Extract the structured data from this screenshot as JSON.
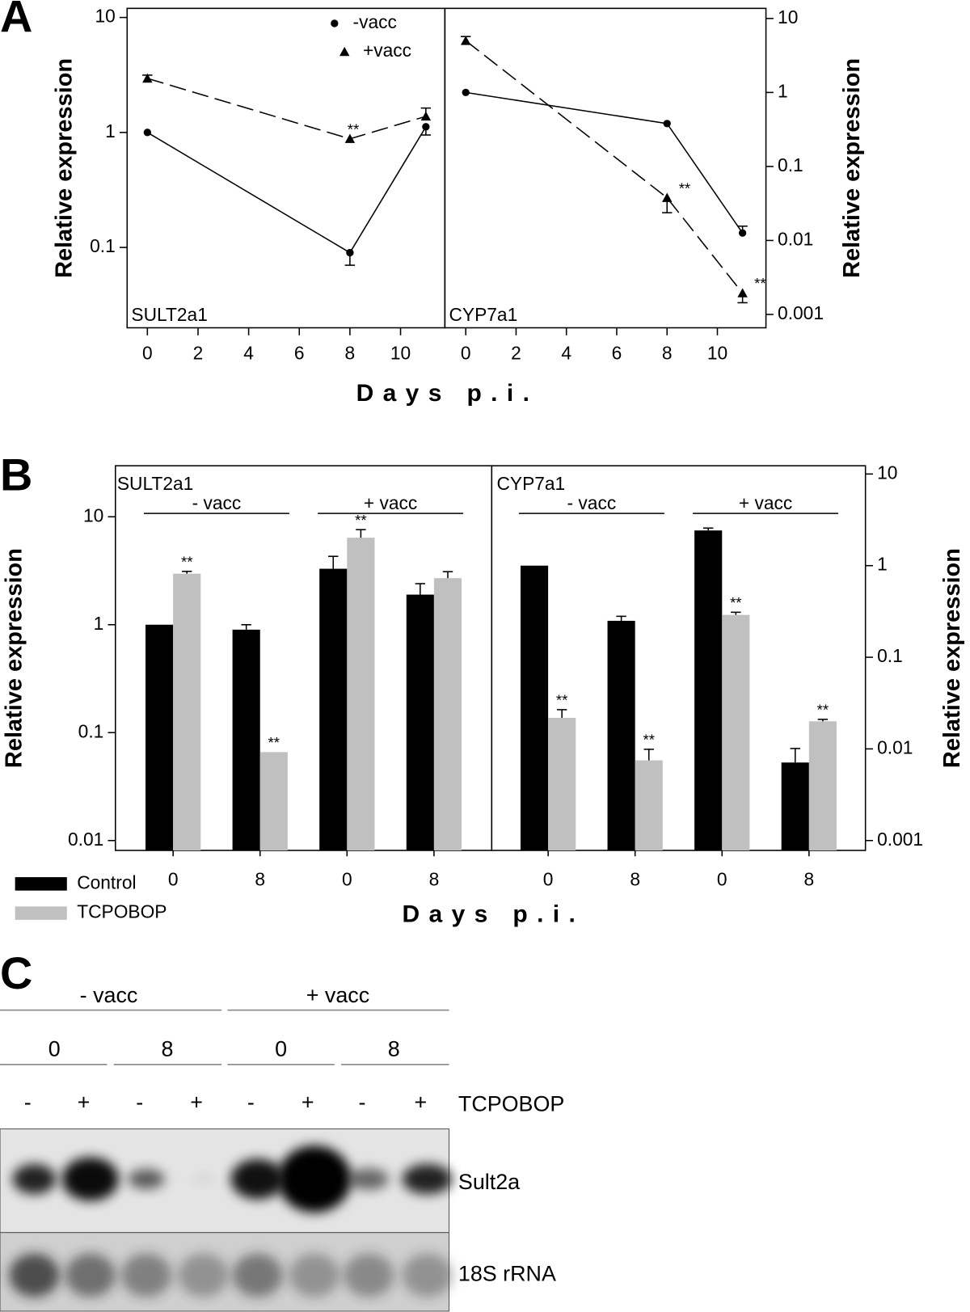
{
  "panel_labels": [
    "A",
    "B",
    "C"
  ],
  "chart_data": [
    {
      "type": "line",
      "title": "SULT2a1",
      "ylabel": "Relative expression",
      "xlabel": "Days p.i.",
      "log_y": true,
      "x": [
        0,
        8,
        11
      ],
      "xlim": [
        -0.8,
        11.75
      ],
      "xticks": [
        0,
        2,
        4,
        6,
        8,
        10
      ],
      "ylim": [
        0.02,
        12
      ],
      "yticks": [
        0.1,
        1,
        10
      ],
      "legend": "upper center",
      "series": [
        {
          "name": "-vacc",
          "color": "#000000",
          "marker": "circle",
          "dashed": false,
          "values": [
            1.0,
            0.09,
            1.12
          ],
          "err_down": [
            null,
            0.02,
            0.17
          ]
        },
        {
          "name": "+vacc",
          "color": "#000000",
          "marker": "triangle",
          "dashed": true,
          "values": [
            2.95,
            0.88,
            1.38
          ],
          "err_up": [
            0.2,
            null,
            0.25
          ],
          "significance": [
            null,
            "**",
            null
          ]
        }
      ]
    },
    {
      "type": "line",
      "title": "CYP7a1",
      "ylabel": "Relative expression",
      "log_y": true,
      "x": [
        0,
        8,
        11
      ],
      "xlim": [
        -0.83,
        11.93
      ],
      "xticks": [
        0,
        2,
        4,
        6,
        8,
        10
      ],
      "ylim": [
        0.00066,
        13.7
      ],
      "yticks": [
        0.001,
        0.01,
        0.1,
        1,
        10
      ],
      "series": [
        {
          "color": "#000000",
          "marker": "circle",
          "dashed": false,
          "values": [
            1.0,
            0.38,
            0.0126
          ],
          "err_up": [
            null,
            null,
            0.003
          ]
        },
        {
          "color": "#000000",
          "marker": "triangle",
          "dashed": true,
          "values": [
            5.0,
            0.0377,
            0.00194
          ],
          "err_up": [
            0.7,
            null,
            null
          ],
          "err_down": [
            null,
            0.014,
            0.0005
          ],
          "significance": [
            null,
            "**",
            "**"
          ]
        }
      ]
    },
    {
      "type": "bar",
      "title": "SULT2a1",
      "ylabel": "Relative expression",
      "xlabel": "Days p.i.",
      "log_y": true,
      "categories": [
        "0",
        "8",
        "0",
        "8"
      ],
      "groups": [
        "- vacc",
        "+ vacc"
      ],
      "ylim": [
        0.0081,
        29.7
      ],
      "yticks": [
        0.01,
        0.1,
        1,
        10
      ],
      "legend": "lower left",
      "series": [
        {
          "name": "Control",
          "color": "#000000",
          "values": [
            1.0,
            0.9,
            3.3,
            1.9
          ],
          "err_up": [
            null,
            0.1,
            1.0,
            0.5
          ]
        },
        {
          "name": "TCPOBOP",
          "color": "#c0c0c0",
          "values": [
            2.97,
            0.066,
            6.4,
            2.7
          ],
          "err_up": [
            0.15,
            null,
            1.2,
            0.4
          ],
          "significance": [
            "**",
            "**",
            "**",
            null
          ]
        }
      ]
    },
    {
      "type": "bar",
      "title": "CYP7a1",
      "ylabel": "Relative expression",
      "log_y": true,
      "categories": [
        "0",
        "8",
        "0",
        "8"
      ],
      "groups": [
        "- vacc",
        "+ vacc"
      ],
      "ylim": [
        0.00078,
        12.3
      ],
      "yticks": [
        0.001,
        0.01,
        0.1,
        1,
        10
      ],
      "series": [
        {
          "color": "#000000",
          "values": [
            1.0,
            0.25,
            2.42,
            0.0071
          ],
          "err_up": [
            null,
            0.03,
            0.15,
            0.003
          ]
        },
        {
          "color": "#c0c0c0",
          "values": [
            0.0218,
            0.0075,
            0.29,
            0.02
          ],
          "err_up": [
            0.005,
            0.0024,
            0.02,
            0.001
          ],
          "significance": [
            "**",
            "**",
            "**",
            "**"
          ]
        }
      ]
    }
  ],
  "blot": {
    "groups": [
      "- vacc",
      "+ vacc"
    ],
    "days": [
      "0",
      "8",
      "0",
      "8"
    ],
    "treatment": {
      "label": "TCPOBOP",
      "signs": [
        "-",
        "+",
        "-",
        "+",
        "-",
        "+",
        "-",
        "+"
      ]
    },
    "rows": [
      "Sult2a",
      "18S rRNA"
    ]
  }
}
